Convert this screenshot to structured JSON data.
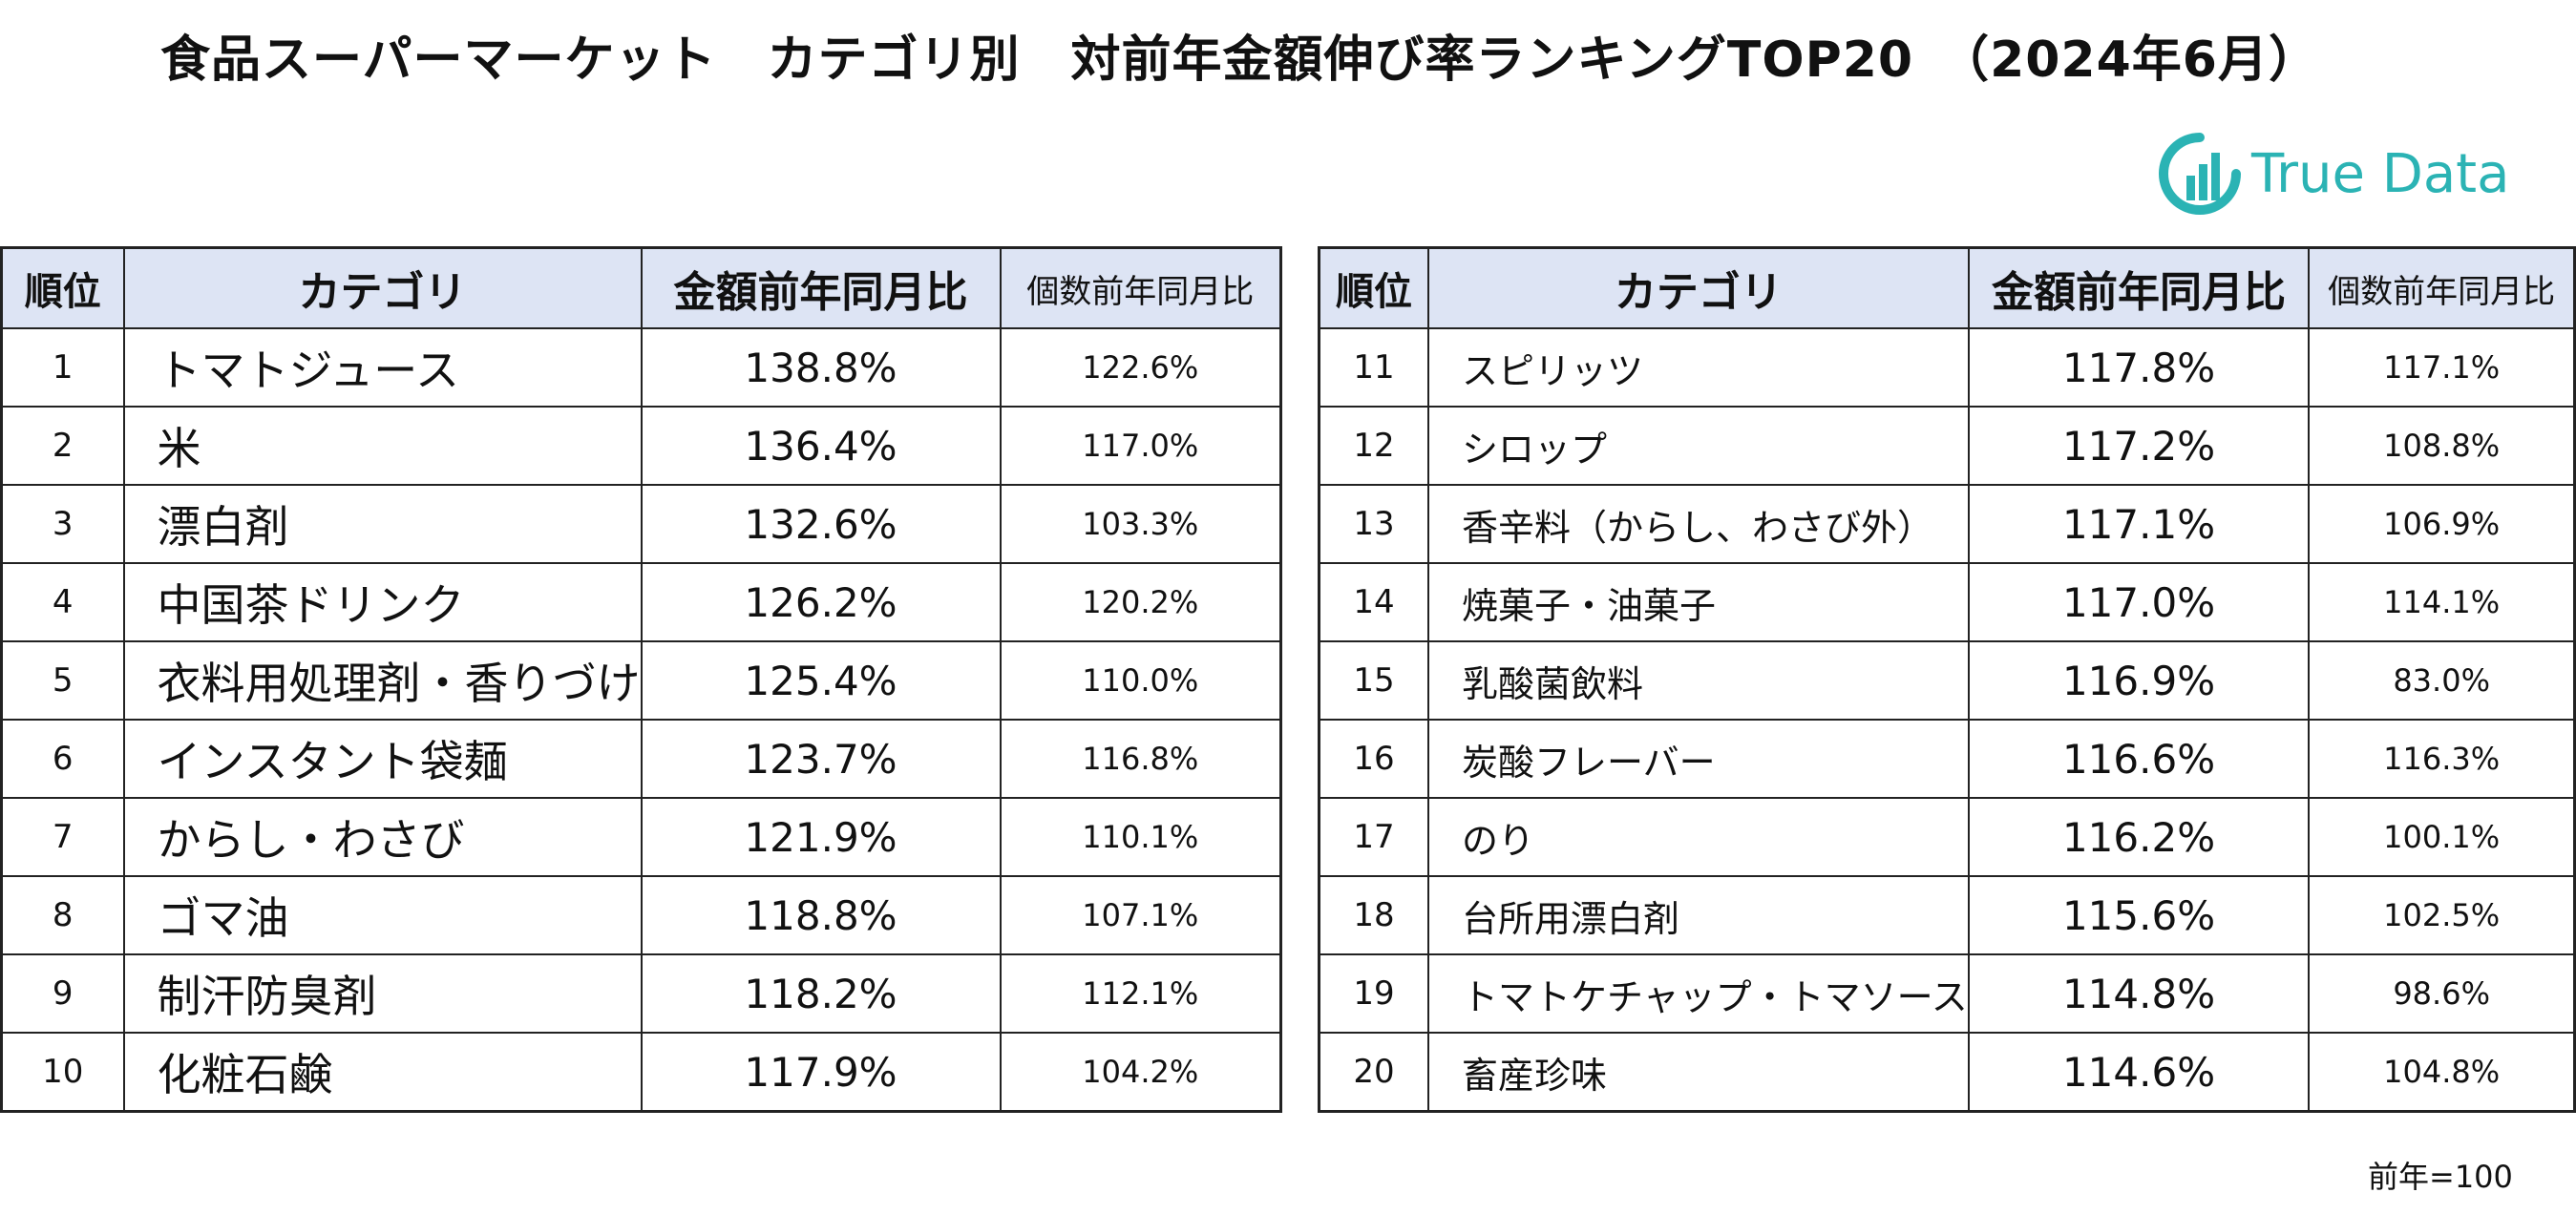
{
  "title": "食品スーパーマーケット　カテゴリ別　対前年金額伸び率ランキングTOP20　（2024年6月）",
  "logo": {
    "text": "True Data",
    "icon": "bar-chart-logo-icon",
    "color": "#2bb3b4"
  },
  "table": {
    "headers": {
      "rank": "順位",
      "category": "カテゴリ",
      "amount": "金額前年同月比",
      "count": "個数前年同月比"
    },
    "header_bg": "#dde4f4",
    "left_rows": [
      {
        "rank": "1",
        "category": "トマトジュース",
        "amount": "138.8%",
        "count": "122.6%"
      },
      {
        "rank": "2",
        "category": "米",
        "amount": "136.4%",
        "count": "117.0%"
      },
      {
        "rank": "3",
        "category": "漂白剤",
        "amount": "132.6%",
        "count": "103.3%"
      },
      {
        "rank": "4",
        "category": "中国茶ドリンク",
        "amount": "126.2%",
        "count": "120.2%"
      },
      {
        "rank": "5",
        "category": "衣料用処理剤・香りづけ",
        "amount": "125.4%",
        "count": "110.0%"
      },
      {
        "rank": "6",
        "category": "インスタント袋麺",
        "amount": "123.7%",
        "count": "116.8%"
      },
      {
        "rank": "7",
        "category": "からし・わさび",
        "amount": "121.9%",
        "count": "110.1%"
      },
      {
        "rank": "8",
        "category": "ゴマ油",
        "amount": "118.8%",
        "count": "107.1%"
      },
      {
        "rank": "9",
        "category": "制汗防臭剤",
        "amount": "118.2%",
        "count": "112.1%"
      },
      {
        "rank": "10",
        "category": "化粧石鹸",
        "amount": "117.9%",
        "count": "104.2%"
      }
    ],
    "right_rows": [
      {
        "rank": "11",
        "category": "スピリッツ",
        "amount": "117.8%",
        "count": "117.1%"
      },
      {
        "rank": "12",
        "category": "シロップ",
        "amount": "117.2%",
        "count": "108.8%"
      },
      {
        "rank": "13",
        "category": "香辛料（からし、わさび外）",
        "amount": "117.1%",
        "count": "106.9%"
      },
      {
        "rank": "14",
        "category": "焼菓子・油菓子",
        "amount": "117.0%",
        "count": "114.1%"
      },
      {
        "rank": "15",
        "category": "乳酸菌飲料",
        "amount": "116.9%",
        "count": "83.0%"
      },
      {
        "rank": "16",
        "category": "炭酸フレーバー",
        "amount": "116.6%",
        "count": "116.3%"
      },
      {
        "rank": "17",
        "category": "のり",
        "amount": "116.2%",
        "count": "100.1%"
      },
      {
        "rank": "18",
        "category": "台所用漂白剤",
        "amount": "115.6%",
        "count": "102.5%"
      },
      {
        "rank": "19",
        "category": "トマトケチャップ・トマソース",
        "amount": "114.8%",
        "count": "98.6%"
      },
      {
        "rank": "20",
        "category": "畜産珍味",
        "amount": "114.6%",
        "count": "104.8%"
      }
    ]
  },
  "note": "前年=100"
}
